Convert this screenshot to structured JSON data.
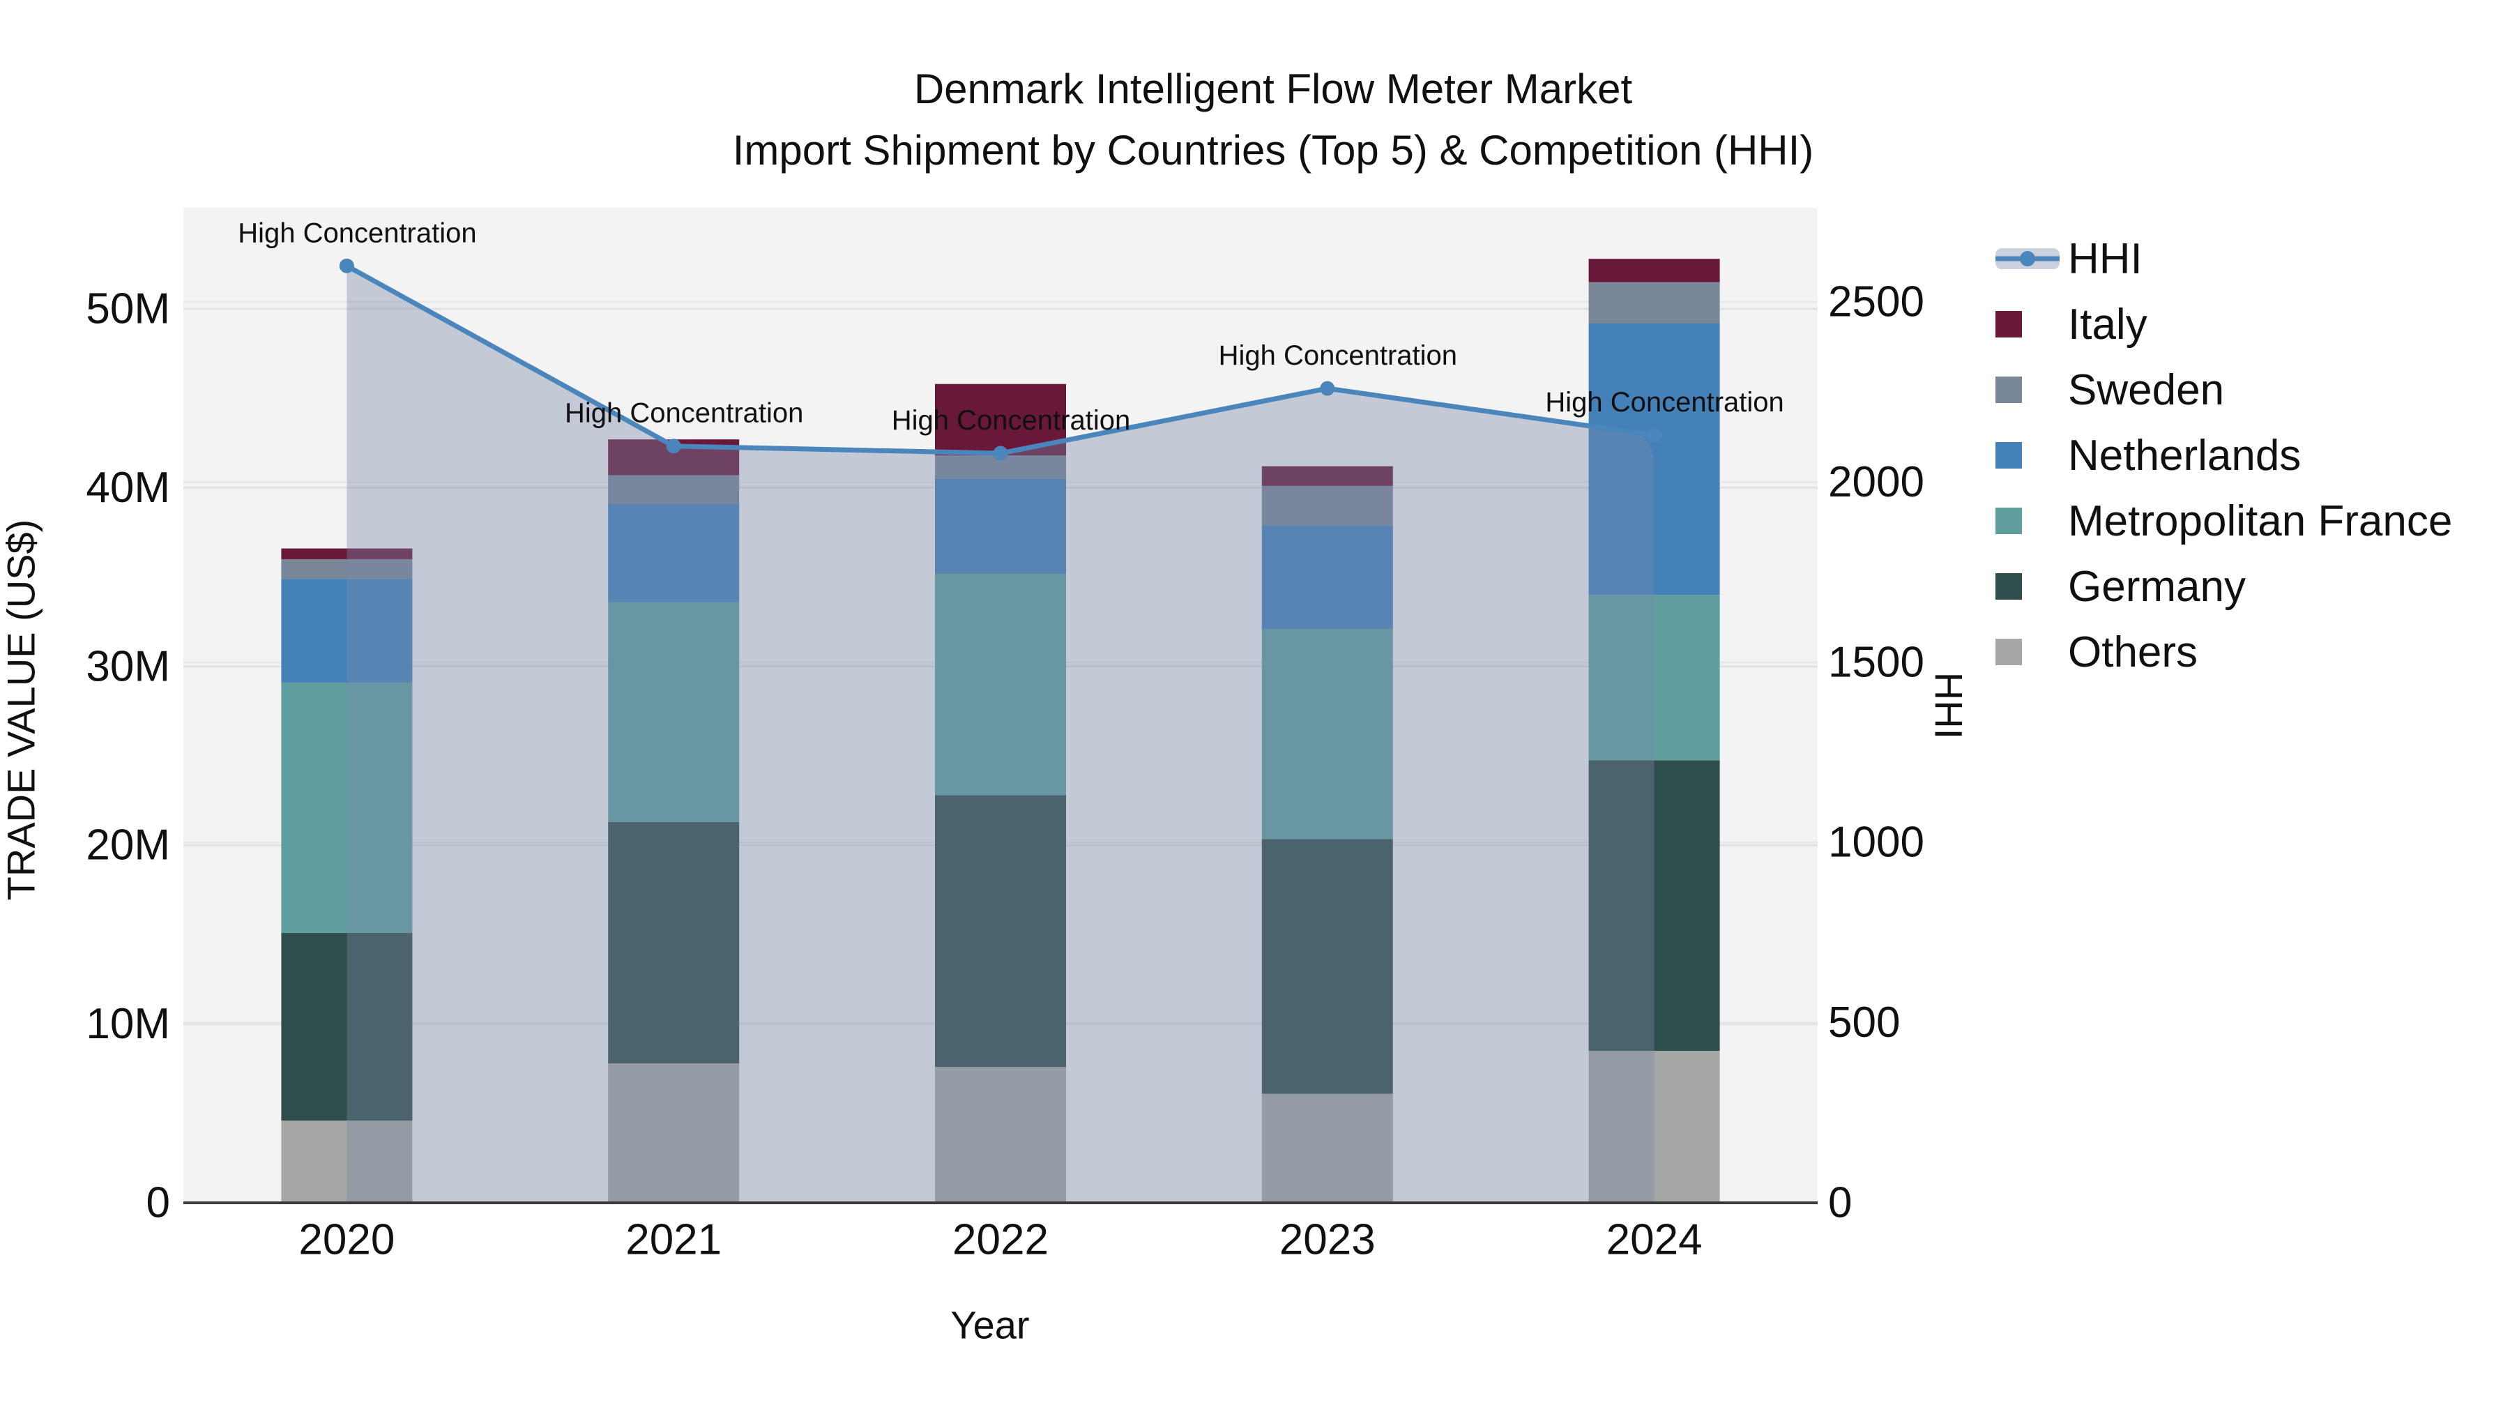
{
  "title": {
    "line1": "Denmark Intelligent Flow Meter Market",
    "line2": "Import Shipment by Countries (Top 5) & Competition (HHI)"
  },
  "axes": {
    "y_left": {
      "label": "TRADE VALUE (US$)",
      "ticks": [
        "0",
        "10M",
        "20M",
        "30M",
        "40M",
        "50M"
      ]
    },
    "y_right": {
      "label": "HHI",
      "ticks": [
        "0",
        "500",
        "1000",
        "1500",
        "2000",
        "2500"
      ]
    },
    "x": {
      "label": "Year"
    }
  },
  "legend": {
    "items": [
      {
        "label": "HHI",
        "type": "line",
        "color": "#4a86bb"
      },
      {
        "label": "Italy",
        "type": "swatch",
        "color": "#6a1839"
      },
      {
        "label": "Sweden",
        "type": "swatch",
        "color": "#7a8798"
      },
      {
        "label": "Netherlands",
        "type": "swatch",
        "color": "#4481b8"
      },
      {
        "label": "Metropolitan France",
        "type": "swatch",
        "color": "#5f9e9e"
      },
      {
        "label": "Germany",
        "type": "swatch",
        "color": "#2f4d4a"
      },
      {
        "label": "Others",
        "type": "swatch",
        "color": "#a5a7a4"
      }
    ]
  },
  "chart_data": {
    "type": "bar",
    "stacked": true,
    "grid": true,
    "title": "Denmark Intelligent Flow Meter Market — Import Shipment by Countries (Top 5) & Competition (HHI)",
    "categories": [
      "2020",
      "2021",
      "2022",
      "2023",
      "2024"
    ],
    "xlabel": "Year",
    "ylabel_left": "TRADE VALUE (US$)",
    "ylabel_right": "HHI",
    "y_left_unit": "USD (millions)",
    "y_left_tick_labels": [
      "0",
      "10M",
      "20M",
      "30M",
      "40M",
      "50M"
    ],
    "y_left_tick_values_m": [
      0,
      10,
      20,
      30,
      40,
      50
    ],
    "y_left_range_m": [
      0,
      55.6
    ],
    "y_right_tick_labels": [
      "0",
      "500",
      "1000",
      "1500",
      "2000",
      "2500"
    ],
    "y_right_tick_values": [
      0,
      500,
      1000,
      1500,
      2000,
      2500
    ],
    "y_right_range": [
      0,
      2780
    ],
    "bar_totals_m": [
      36.6,
      42.7,
      45.8,
      41.2,
      52.8
    ],
    "series": [
      {
        "name": "Others",
        "color": "#a5a7a4",
        "values_m": [
          4.6,
          7.8,
          7.6,
          6.1,
          8.5
        ]
      },
      {
        "name": "Germany",
        "color": "#2f4d4a",
        "values_m": [
          10.5,
          13.5,
          15.2,
          14.25,
          16.25
        ]
      },
      {
        "name": "Metropolitan France",
        "color": "#5f9e9e",
        "values_m": [
          14.0,
          12.3,
          12.4,
          11.75,
          9.25
        ]
      },
      {
        "name": "Netherlands",
        "color": "#4481b8",
        "values_m": [
          5.8,
          5.5,
          5.3,
          5.8,
          15.2
        ]
      },
      {
        "name": "Sweden",
        "color": "#7a8798",
        "values_m": [
          1.1,
          1.6,
          1.3,
          2.2,
          2.3
        ]
      },
      {
        "name": "Italy",
        "color": "#6a1839",
        "values_m": [
          0.6,
          2.0,
          4.0,
          1.1,
          1.3
        ]
      }
    ],
    "hhi": {
      "name": "HHI",
      "type": "line+area",
      "color": "#4a86bb",
      "area_color": "rgba(118,138,168,0.38)",
      "values": [
        2600,
        2100,
        2080,
        2260,
        2130
      ],
      "annotations": [
        "High Concentration",
        "High Concentration",
        "High Concentration",
        "High Concentration",
        "High Concentration"
      ]
    }
  }
}
